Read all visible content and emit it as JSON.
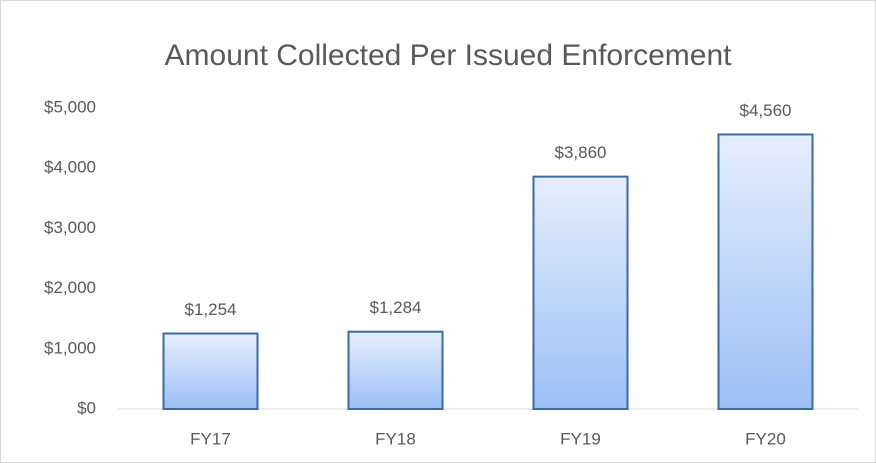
{
  "chart_data": {
    "type": "bar",
    "title": "Amount Collected Per Issued Enforcement",
    "categories": [
      "FY17",
      "FY18",
      "FY19",
      "FY20"
    ],
    "values": [
      1254,
      1284,
      3860,
      4560
    ],
    "value_labels": [
      "$1,254",
      "$1,284",
      "$3,860",
      "$4,560"
    ],
    "color": "#9cbff5",
    "edge_color": "#3a6aa8",
    "ylim": [
      0,
      5000
    ],
    "yticks": [
      {
        "value": 0,
        "label": "$0"
      },
      {
        "value": 1000,
        "label": "$1,000"
      },
      {
        "value": 2000,
        "label": "$2,000"
      },
      {
        "value": 3000,
        "label": "$3,000"
      },
      {
        "value": 4000,
        "label": "$4,000"
      },
      {
        "value": 5000,
        "label": "$5,000"
      }
    ],
    "grid": false
  }
}
